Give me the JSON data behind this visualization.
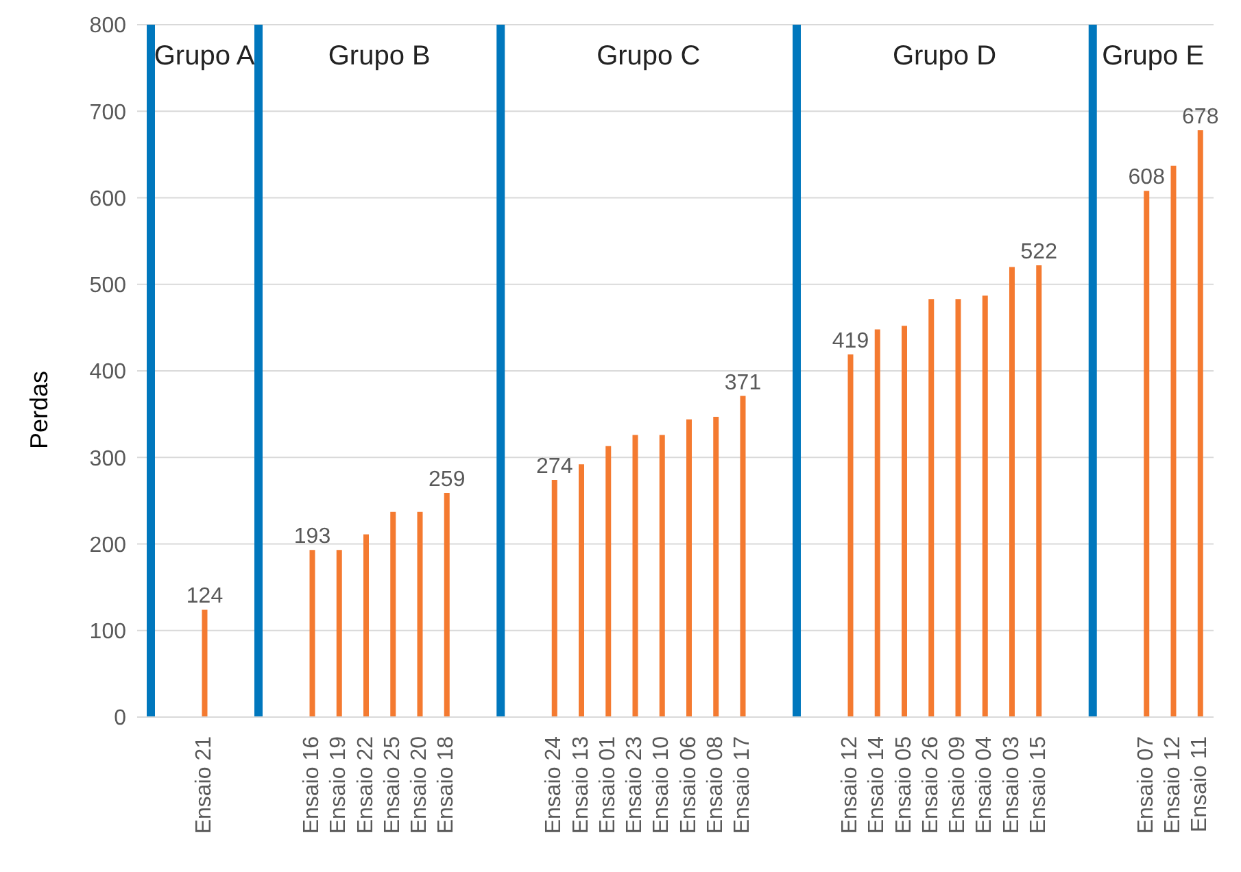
{
  "chart_data": {
    "type": "bar",
    "ylabel": "Perdas",
    "ylim": [
      0,
      800
    ],
    "yticks": [
      0,
      100,
      200,
      300,
      400,
      500,
      600,
      700,
      800
    ],
    "grid": "y",
    "legend": false,
    "categories": [
      null,
      null,
      "Ensaio 21",
      null,
      null,
      null,
      "Ensaio 16",
      "Ensaio 19",
      "Ensaio 22",
      "Ensaio 25",
      "Ensaio 20",
      "Ensaio 18",
      null,
      null,
      null,
      "Ensaio 24",
      "Ensaio 13",
      "Ensaio 01",
      "Ensaio 23",
      "Ensaio 10",
      "Ensaio 06",
      "Ensaio 08",
      "Ensaio 17",
      null,
      null,
      null,
      "Ensaio 12",
      "Ensaio 14",
      "Ensaio 05",
      "Ensaio 26",
      "Ensaio 09",
      "Ensaio 04",
      "Ensaio 03",
      "Ensaio 15",
      null,
      null,
      null,
      "Ensaio 07",
      "Ensaio 12",
      "Ensaio 11"
    ],
    "series": [
      {
        "color": "#f47a30",
        "values": [
          null,
          null,
          124,
          null,
          null,
          null,
          193,
          193,
          211,
          237,
          237,
          259,
          null,
          null,
          null,
          274,
          292,
          313,
          326,
          326,
          344,
          347,
          371,
          null,
          null,
          null,
          419,
          448,
          452,
          483,
          483,
          487,
          520,
          522,
          null,
          null,
          null,
          608,
          637,
          678
        ],
        "value_labels": [
          null,
          null,
          "124",
          null,
          null,
          null,
          "193",
          null,
          null,
          null,
          null,
          "259",
          null,
          null,
          null,
          "274",
          null,
          null,
          null,
          null,
          null,
          null,
          "371",
          null,
          null,
          null,
          "419",
          null,
          null,
          null,
          null,
          null,
          null,
          "522",
          null,
          null,
          null,
          "608",
          null,
          "678"
        ]
      },
      {
        "color": "#0077bd",
        "values": [
          800,
          null,
          null,
          null,
          800,
          null,
          null,
          null,
          null,
          null,
          null,
          null,
          null,
          800,
          null,
          null,
          null,
          null,
          null,
          null,
          null,
          null,
          null,
          null,
          800,
          null,
          null,
          null,
          null,
          null,
          null,
          null,
          null,
          null,
          null,
          800,
          null,
          null,
          null,
          null
        ]
      }
    ],
    "annotations": [
      "Grupo A",
      "Grupo B",
      "Grupo C",
      "Grupo D",
      "Grupo E"
    ]
  }
}
